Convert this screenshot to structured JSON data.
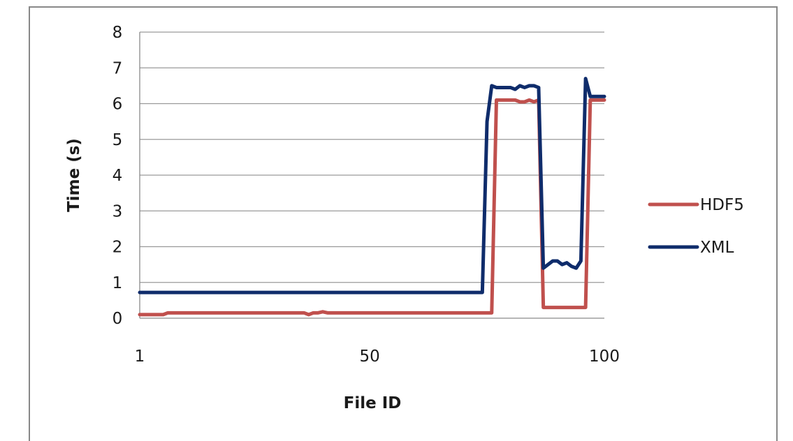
{
  "chart_data": {
    "type": "line",
    "title": "",
    "xlabel": "File ID",
    "ylabel": "Time (s)",
    "xlim": [
      1,
      100
    ],
    "ylim": [
      0,
      8
    ],
    "x_ticks": [
      1,
      50,
      100
    ],
    "y_ticks": [
      0,
      1,
      2,
      3,
      4,
      5,
      6,
      7,
      8
    ],
    "grid": "horizontal",
    "legend_position": "right",
    "x": [
      1,
      2,
      3,
      4,
      5,
      6,
      7,
      8,
      9,
      10,
      11,
      12,
      13,
      14,
      15,
      16,
      17,
      18,
      19,
      20,
      21,
      22,
      23,
      24,
      25,
      26,
      27,
      28,
      29,
      30,
      31,
      32,
      33,
      34,
      35,
      36,
      37,
      38,
      39,
      40,
      41,
      42,
      43,
      44,
      45,
      46,
      47,
      48,
      49,
      50,
      51,
      52,
      53,
      54,
      55,
      56,
      57,
      58,
      59,
      60,
      61,
      62,
      63,
      64,
      65,
      66,
      67,
      68,
      69,
      70,
      71,
      72,
      73,
      74,
      75,
      76,
      77,
      78,
      79,
      80,
      81,
      82,
      83,
      84,
      85,
      86,
      87,
      88,
      89,
      90,
      91,
      92,
      93,
      94,
      95,
      96,
      97,
      98,
      99,
      100
    ],
    "series": [
      {
        "name": "HDF5",
        "color": "#c0504d",
        "values": [
          0.1,
          0.1,
          0.1,
          0.1,
          0.1,
          0.1,
          0.15,
          0.15,
          0.15,
          0.15,
          0.15,
          0.15,
          0.15,
          0.15,
          0.15,
          0.15,
          0.15,
          0.15,
          0.15,
          0.15,
          0.15,
          0.15,
          0.15,
          0.15,
          0.15,
          0.15,
          0.15,
          0.15,
          0.15,
          0.15,
          0.15,
          0.15,
          0.15,
          0.15,
          0.15,
          0.15,
          0.1,
          0.15,
          0.15,
          0.18,
          0.15,
          0.15,
          0.15,
          0.15,
          0.15,
          0.15,
          0.15,
          0.15,
          0.15,
          0.15,
          0.15,
          0.15,
          0.15,
          0.15,
          0.15,
          0.15,
          0.15,
          0.15,
          0.15,
          0.15,
          0.15,
          0.15,
          0.15,
          0.15,
          0.15,
          0.15,
          0.15,
          0.15,
          0.15,
          0.15,
          0.15,
          0.15,
          0.15,
          0.15,
          0.15,
          0.15,
          6.1,
          6.1,
          6.1,
          6.1,
          6.1,
          6.05,
          6.05,
          6.1,
          6.05,
          6.1,
          0.3,
          0.3,
          0.3,
          0.3,
          0.3,
          0.3,
          0.3,
          0.3,
          0.3,
          0.3,
          6.1,
          6.1,
          6.1,
          6.1
        ]
      },
      {
        "name": "XML",
        "color": "#0f2c6b",
        "values": [
          0.72,
          0.72,
          0.72,
          0.72,
          0.72,
          0.72,
          0.72,
          0.72,
          0.72,
          0.72,
          0.72,
          0.72,
          0.72,
          0.72,
          0.72,
          0.72,
          0.72,
          0.72,
          0.72,
          0.72,
          0.72,
          0.72,
          0.72,
          0.72,
          0.72,
          0.72,
          0.72,
          0.72,
          0.72,
          0.72,
          0.72,
          0.72,
          0.72,
          0.72,
          0.72,
          0.72,
          0.72,
          0.72,
          0.72,
          0.72,
          0.72,
          0.72,
          0.72,
          0.72,
          0.72,
          0.72,
          0.72,
          0.72,
          0.72,
          0.72,
          0.72,
          0.72,
          0.72,
          0.72,
          0.72,
          0.72,
          0.72,
          0.72,
          0.72,
          0.72,
          0.72,
          0.72,
          0.72,
          0.72,
          0.72,
          0.72,
          0.72,
          0.72,
          0.72,
          0.72,
          0.72,
          0.72,
          0.72,
          0.72,
          5.5,
          6.5,
          6.45,
          6.45,
          6.45,
          6.45,
          6.4,
          6.5,
          6.45,
          6.5,
          6.5,
          6.45,
          1.4,
          1.5,
          1.6,
          1.6,
          1.5,
          1.55,
          1.45,
          1.4,
          1.6,
          6.7,
          6.2,
          6.2,
          6.2,
          6.2
        ]
      }
    ]
  }
}
